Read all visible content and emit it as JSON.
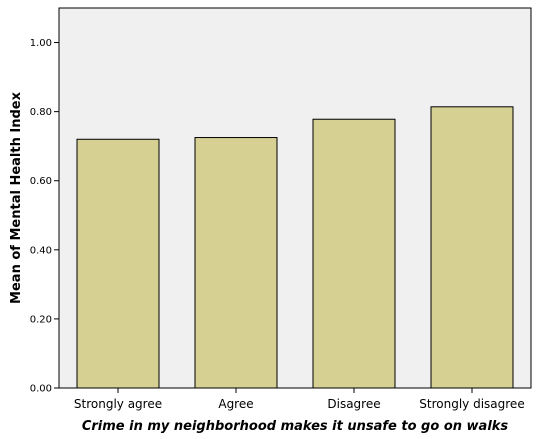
{
  "chart_data": {
    "type": "bar",
    "categories": [
      "Strongly agree",
      "Agree",
      "Disagree",
      "Strongly disagree"
    ],
    "values": [
      0.72,
      0.725,
      0.778,
      0.814
    ],
    "xlabel": "Crime in my neighborhood makes it unsafe to go on walks",
    "ylabel": "Mean of Mental Health Index",
    "ylim": [
      0,
      1.1
    ],
    "yticks": [
      "0.00",
      "0.20",
      "0.40",
      "0.60",
      "0.80",
      "1.00"
    ],
    "grid": false,
    "colors": {
      "bar_fill": "#d6d093",
      "bar_stroke": "#000000",
      "plot_background": "#f0f0f0"
    }
  }
}
